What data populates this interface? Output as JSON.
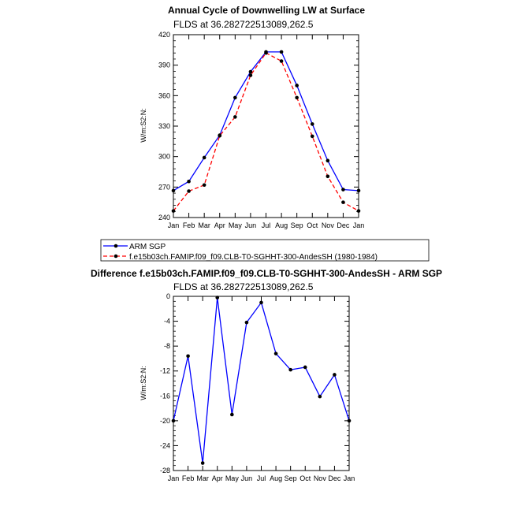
{
  "chart_data": [
    {
      "type": "line",
      "title": "Annual Cycle of Downwelling LW at Surface",
      "subtitle": "FLDS at 36.282722513089,262.5",
      "ylabel": "W/m:S2:N:",
      "xlabel": "",
      "categories": [
        "Jan",
        "Feb",
        "Mar",
        "Apr",
        "May",
        "Jun",
        "Jul",
        "Aug",
        "Sep",
        "Oct",
        "Nov",
        "Dec",
        "Jan"
      ],
      "ylim": [
        240,
        420
      ],
      "yticks": [
        240,
        270,
        300,
        330,
        360,
        390,
        420
      ],
      "series": [
        {
          "name": "ARM SGP",
          "color": "#0000ff",
          "dash": "solid",
          "values": [
            266.5,
            275.5,
            299,
            321,
            358,
            383.5,
            403,
            403,
            370,
            332,
            296,
            267.5,
            266.5
          ]
        },
        {
          "name": "f.e15b03ch.FAMIP.f09_f09.CLB-T0-SGHHT-300-AndesSH (1980-1984)",
          "color": "#ff0000",
          "dash": "dashed",
          "values": [
            246.5,
            266,
            272,
            320.5,
            339,
            380,
            402,
            394,
            358,
            320,
            280.5,
            255,
            246.5
          ]
        }
      ],
      "legend": "bottom-left"
    },
    {
      "type": "line",
      "title": "Difference f.e15b03ch.FAMIP.f09_f09.CLB-T0-SGHHT-300-AndesSH - ARM SGP",
      "subtitle": "FLDS at 36.282722513089,262.5",
      "ylabel": "W/m:S2:N:",
      "xlabel": "",
      "categories": [
        "Jan",
        "Feb",
        "Mar",
        "Apr",
        "May",
        "Jun",
        "Jul",
        "Aug",
        "Sep",
        "Oct",
        "Nov",
        "Dec",
        "Jan"
      ],
      "ylim": [
        -28,
        0
      ],
      "yticks": [
        -28,
        -24,
        -20,
        -16,
        -12,
        -8,
        -4,
        0
      ],
      "series": [
        {
          "name": "",
          "color": "#0000ff",
          "dash": "solid",
          "values": [
            -20,
            -9.6,
            -26.8,
            -0.2,
            -19,
            -4.2,
            -1,
            -9.2,
            -11.8,
            -11.4,
            -16.1,
            -12.6,
            -20
          ]
        }
      ]
    }
  ]
}
